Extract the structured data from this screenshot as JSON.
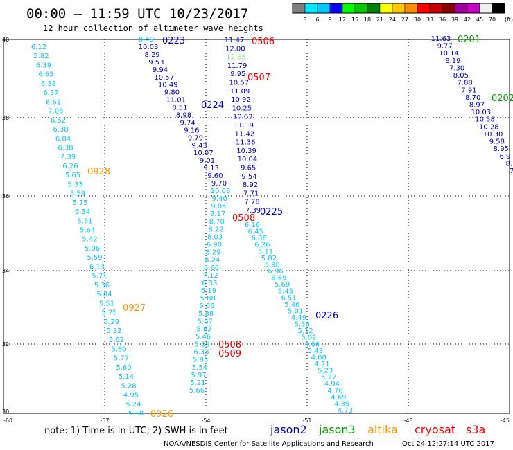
{
  "header": {
    "title": "00:00 – 11:59 UTC 10/23/2017",
    "subtitle": "12 hour collection of altimeter wave heights"
  },
  "colorbar": {
    "swatches": [
      "#808080",
      "#00e8ff",
      "#00c8ff",
      "#0000ff",
      "#00ff00",
      "#00c800",
      "#008000",
      "#ffff00",
      "#ffc800",
      "#ff8c00",
      "#ff0000",
      "#c80000",
      "#8c0000",
      "#a000a0",
      "#c800c8",
      "#f0f0f0",
      "#000000"
    ],
    "labels": [
      "3",
      "6",
      "9",
      "12",
      "15",
      "18",
      "21",
      "24",
      "27",
      "30",
      "33",
      "36",
      "39",
      "42",
      "45",
      "70",
      "(ft)"
    ]
  },
  "axes": {
    "lat_labels": [
      "40",
      "38",
      "36",
      "34",
      "32",
      "30"
    ],
    "lon_labels": [
      "-60",
      "-57",
      "-54",
      "-51",
      "-48",
      "-45"
    ]
  },
  "colors": {
    "cyan": "#00c8ff",
    "blue": "#0000c8",
    "green": "#00a000",
    "orange": "#ff9600",
    "red": "#ff0000",
    "lightgreen": "#80e080"
  },
  "tracks": [
    {
      "name": "altika-track-west",
      "color": "cyan",
      "values": [
        "6.12",
        "5.82",
        "6.39",
        "6.65",
        "6.38",
        "6.37",
        "6.61",
        "7.05",
        "6.52",
        "6.38",
        "6.84",
        "6.38",
        "7.39",
        "6.26",
        "5.65",
        "5.33",
        "5.59",
        "5.75",
        "6.34",
        "5.51",
        "5.64",
        "5.42",
        "5.06",
        "5.59",
        "6.13",
        "5.71",
        "5.36",
        "5.84",
        "5.51",
        "5.75",
        "5.29",
        "5.32",
        "5.62",
        "5.80",
        "5.77",
        "5.60",
        "5.14",
        "5.28",
        "4.95",
        "5.24",
        "5.18"
      ]
    },
    {
      "name": "jason2-track-northwest",
      "color": "blue",
      "values": [
        "10.03",
        "8.29",
        "9.53",
        "9.94",
        "10.57",
        "10.49",
        "9.80",
        "11.01",
        "8.51",
        "8.98",
        "9.74",
        "9.16",
        "9.79",
        "9.43",
        "10.07",
        "9.01",
        "9.13",
        "9.60",
        "9.70"
      ]
    },
    {
      "name": "jason2-track-northwest-first",
      "color": "cyan",
      "values": [
        "8.49"
      ]
    },
    {
      "name": "cryosat-track-north",
      "color": "blue",
      "values": [
        "11.47",
        "12.00",
        "12.65",
        "11.79",
        "9.95",
        "10.57",
        "11.09",
        "10.92",
        "10.25",
        "10.63",
        "11.19",
        "11.42",
        "11.36",
        "10.39",
        "10.04",
        "9.65",
        "9.54",
        "8.92",
        "7.71",
        "7.78",
        "7.39"
      ]
    },
    {
      "name": "cryosat-track-south",
      "color": "cyan",
      "values": [
        "10.03",
        "9.40",
        "9.05",
        "9.17",
        "8.70",
        "8.22",
        "8.03",
        "6.90",
        "8.29",
        "8.24",
        "6.66",
        "7.12",
        "6.33",
        "6.19",
        "5.88",
        "6.06",
        "5.88",
        "5.67",
        "5.62",
        "5.46",
        "5.52",
        "6.33",
        "5.93",
        "5.54",
        "5.97",
        "5.21",
        "5.66"
      ]
    },
    {
      "name": "jason2-track-southeast",
      "color": "cyan",
      "values": [
        "6.16",
        "6.45",
        "6.06",
        "6.26",
        "5.11",
        "5.82",
        "5.98",
        "6.96",
        "6.69",
        "5.69",
        "5.45",
        "6.51",
        "5.46",
        "5.01",
        "4.49",
        "5.56",
        "5.12",
        "5.02",
        "4.66",
        "5.43",
        "4.00",
        "4.21",
        "5.23",
        "5.27",
        "4.94",
        "4.76",
        "4.69",
        "4.39",
        "4.73"
      ]
    },
    {
      "name": "jason3-track-northeast",
      "color": "blue",
      "values": [
        "11.63",
        "9.77",
        "10.14",
        "8.19",
        "7.30",
        "8.05",
        "7.88",
        "7.91",
        "8.70",
        "8.97",
        "10.03",
        "10.58",
        "10.28",
        "10.30",
        "9.58",
        "8.95",
        "6.9",
        "8.",
        "7."
      ]
    }
  ],
  "time_labels": [
    {
      "text": "0223",
      "color": "blue"
    },
    {
      "text": "0506",
      "color": "red"
    },
    {
      "text": "0507",
      "color": "red"
    },
    {
      "text": "0224",
      "color": "blue"
    },
    {
      "text": "0928",
      "color": "orange"
    },
    {
      "text": "0225",
      "color": "blue"
    },
    {
      "text": "0508",
      "color": "red"
    },
    {
      "text": "0927",
      "color": "orange"
    },
    {
      "text": "0226",
      "color": "blue"
    },
    {
      "text": "0508",
      "color": "red"
    },
    {
      "text": "0509",
      "color": "red"
    },
    {
      "text": "0926",
      "color": "orange"
    },
    {
      "text": "0201",
      "color": "green"
    },
    {
      "text": "0202",
      "color": "green"
    }
  ],
  "footer": {
    "note": "note: 1) Time is in UTC; 2) SWH is in feet",
    "legend": [
      {
        "label": "jason2",
        "color": "blue"
      },
      {
        "label": "jason3",
        "color": "green"
      },
      {
        "label": "altika",
        "color": "orange"
      },
      {
        "label": "cryosat",
        "color": "red"
      },
      {
        "label": "s3a",
        "color": "red"
      }
    ],
    "credit": "NOAA/NESDIS Center for Satellite Applications and Research",
    "timestamp": "Oct 24 12:27:14 UTC 2017"
  }
}
